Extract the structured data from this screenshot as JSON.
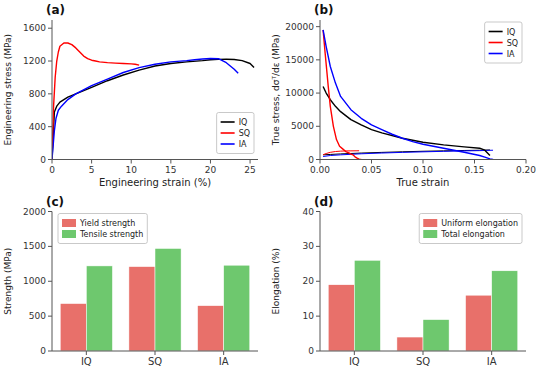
{
  "chart_data": [
    {
      "type": "line",
      "title": "(a)",
      "xlabel": "Engineering strain (%)",
      "ylabel": "Engineering stress (MPa)",
      "xlim": [
        0,
        26
      ],
      "ylim": [
        0,
        1700
      ],
      "xticks": [
        0,
        5,
        10,
        15,
        20,
        25
      ],
      "yticks": [
        0,
        400,
        800,
        1200,
        1600
      ],
      "grid": false,
      "legend": "lower-right",
      "series": [
        {
          "name": "IQ",
          "color": "black",
          "x": [
            0,
            0.3,
            0.6,
            1.0,
            1.5,
            2.0,
            3.0,
            4.0,
            5.0,
            7.0,
            9.0,
            11.0,
            13.0,
            15.0,
            17.0,
            19.0,
            20.0,
            21.0,
            22.0,
            23.0,
            24.0,
            25.0,
            25.5
          ],
          "values": [
            0,
            580,
            650,
            700,
            730,
            760,
            800,
            840,
            880,
            960,
            1030,
            1090,
            1140,
            1170,
            1190,
            1205,
            1215,
            1220,
            1222,
            1218,
            1205,
            1170,
            1120
          ]
        },
        {
          "name": "SQ",
          "color": "red",
          "x": [
            0,
            0.2,
            0.4,
            0.6,
            0.8,
            1.0,
            1.5,
            2.0,
            2.5,
            3.0,
            3.5,
            4.0,
            4.5,
            5.0,
            5.5,
            6.0,
            7.0,
            8.0,
            9.0,
            10.0,
            10.5,
            11.0
          ],
          "values": [
            0,
            650,
            1000,
            1200,
            1310,
            1380,
            1420,
            1420,
            1400,
            1360,
            1310,
            1260,
            1230,
            1210,
            1200,
            1190,
            1180,
            1175,
            1170,
            1165,
            1160,
            1150
          ]
        },
        {
          "name": "IA",
          "color": "blue",
          "x": [
            0,
            0.3,
            0.5,
            0.8,
            1.2,
            2.0,
            3.0,
            5.0,
            7.0,
            9.0,
            11.0,
            13.0,
            15.0,
            17.0,
            18.0,
            19.0,
            20.0,
            21.0,
            22.0,
            23.0,
            23.5
          ],
          "values": [
            0,
            350,
            500,
            600,
            650,
            730,
            800,
            900,
            980,
            1060,
            1120,
            1160,
            1190,
            1205,
            1215,
            1225,
            1230,
            1228,
            1180,
            1100,
            1050
          ]
        }
      ]
    },
    {
      "type": "line",
      "title": "(b)",
      "xlabel": "True strain",
      "ylabel": "True stress, dσᵀ/dε (MPa)",
      "xlim": [
        0,
        0.2
      ],
      "ylim": [
        0,
        21000
      ],
      "xticks": [
        {
          "value": 0,
          "label": "0.00"
        },
        {
          "value": 0.05,
          "label": "0.05"
        },
        {
          "value": 0.1,
          "label": "0.10"
        },
        {
          "value": 0.15,
          "label": "0.15"
        },
        {
          "value": 0.2,
          "label": "0.20"
        }
      ],
      "yticks": [
        0,
        5000,
        10000,
        15000,
        20000
      ],
      "grid": false,
      "legend": "upper-right",
      "series": [
        {
          "color": "black",
          "x": [
            0.003,
            0.01,
            0.02,
            0.04,
            0.06,
            0.08,
            0.1,
            0.12,
            0.14,
            0.155,
            0.16,
            0.165
          ],
          "values": [
            700,
            760,
            840,
            970,
            1070,
            1160,
            1240,
            1305,
            1360,
            1395,
            1420,
            1440
          ]
        },
        {
          "color": "red",
          "x": [
            0.003,
            0.006,
            0.01,
            0.015,
            0.02,
            0.025,
            0.03,
            0.035,
            0.038
          ],
          "values": [
            720,
            900,
            1080,
            1200,
            1260,
            1290,
            1300,
            1310,
            1315
          ]
        },
        {
          "color": "blue",
          "x": [
            0.003,
            0.01,
            0.02,
            0.04,
            0.06,
            0.08,
            0.1,
            0.12,
            0.14,
            0.155,
            0.16,
            0.165,
            0.168
          ],
          "values": [
            450,
            600,
            700,
            860,
            975,
            1070,
            1155,
            1230,
            1295,
            1335,
            1360,
            1385,
            1395
          ]
        },
        {
          "name": "IQ",
          "color": "black",
          "x": [
            0.003,
            0.006,
            0.01,
            0.015,
            0.02,
            0.03,
            0.04,
            0.05,
            0.06,
            0.08,
            0.1,
            0.12,
            0.14,
            0.155,
            0.16,
            0.165
          ],
          "values": [
            11000,
            10000,
            9000,
            8000,
            7200,
            6000,
            5200,
            4500,
            4000,
            3200,
            2600,
            2200,
            1900,
            1700,
            1400,
            600
          ]
        },
        {
          "name": "SQ",
          "color": "red",
          "x": [
            0.003,
            0.005,
            0.008,
            0.01,
            0.013,
            0.016,
            0.019,
            0.022,
            0.025,
            0.028,
            0.03,
            0.032,
            0.034,
            0.036,
            0.038,
            0.04
          ],
          "values": [
            19500,
            16000,
            11000,
            8000,
            5000,
            3000,
            2000,
            1600,
            1200,
            1000,
            800,
            700,
            400,
            200,
            50,
            0
          ]
        },
        {
          "name": "IA",
          "color": "blue",
          "x": [
            0.003,
            0.006,
            0.01,
            0.015,
            0.02,
            0.03,
            0.04,
            0.05,
            0.06,
            0.07,
            0.08,
            0.09,
            0.1,
            0.12,
            0.14,
            0.155,
            0.16,
            0.165,
            0.168
          ],
          "values": [
            19500,
            17000,
            14000,
            11500,
            9500,
            7500,
            6200,
            5200,
            4500,
            3800,
            3200,
            2700,
            2300,
            1700,
            1100,
            600,
            350,
            100,
            0
          ]
        }
      ]
    },
    {
      "type": "bar",
      "title": "(c)",
      "ylabel": "Strength (MPa)",
      "ylim": [
        0,
        2000
      ],
      "yticks": [
        0,
        500,
        1000,
        1500,
        2000
      ],
      "grid": false,
      "legend": "upper-left",
      "categories": [
        "IQ",
        "SQ",
        "IA"
      ],
      "series": [
        {
          "name": "Yield strength",
          "color": "#e8706a",
          "values": [
            680,
            1210,
            650
          ]
        },
        {
          "name": "Tensile strength",
          "color": "#6ec86e",
          "values": [
            1220,
            1470,
            1230
          ]
        }
      ]
    },
    {
      "type": "bar",
      "title": "(d)",
      "ylabel": "Elongation (%)",
      "ylim": [
        0,
        40
      ],
      "yticks": [
        0,
        10,
        20,
        30,
        40
      ],
      "grid": false,
      "legend": "upper-right",
      "categories": [
        "IQ",
        "SQ",
        "IA"
      ],
      "series": [
        {
          "name": "Uniform elongation",
          "color": "#e8706a",
          "values": [
            19,
            4,
            16
          ]
        },
        {
          "name": "Total elongation",
          "color": "#6ec86e",
          "values": [
            26,
            9,
            23
          ]
        }
      ]
    }
  ]
}
